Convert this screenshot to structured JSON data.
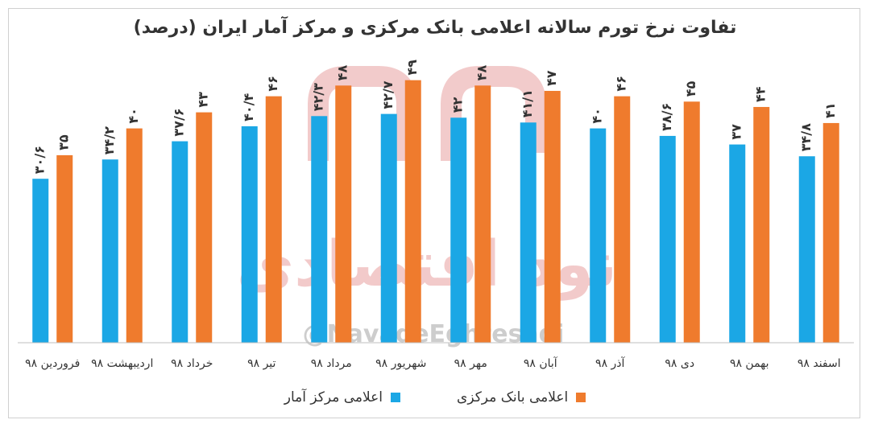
{
  "chart_data": {
    "type": "bar",
    "title": "تفاوت نرخ تورم سالانه اعلامی بانک مرکزی و مرکز آمار ایران (درصد)",
    "categories": [
      "فروردین ۹۸",
      "اردیبهشت ۹۸",
      "خرداد ۹۸",
      "تیر ۹۸",
      "مرداد ۹۸",
      "شهریور ۹۸",
      "مهر ۹۸",
      "آبان ۹۸",
      "آذر ۹۸",
      "دی ۹۸",
      "بهمن ۹۸",
      "اسفند ۹۸"
    ],
    "series": [
      {
        "name": "اعلامی مرکز آمار",
        "color": "#1ba7e5",
        "values": [
          30.6,
          34.2,
          37.6,
          40.4,
          42.3,
          42.7,
          42,
          41.1,
          40,
          38.6,
          37,
          34.8
        ],
        "labels": [
          "۳۰/۶",
          "۳۴/۲",
          "۳۷/۶",
          "۴۰/۴",
          "۴۲/۳",
          "۴۲/۷",
          "۴۲",
          "۴۱/۱",
          "۴۰",
          "۳۸/۶",
          "۳۷",
          "۳۴/۸"
        ]
      },
      {
        "name": "اعلامی بانک مرکزی",
        "color": "#ef7b2d",
        "values": [
          35,
          40,
          43,
          46,
          48,
          49,
          48,
          47,
          46,
          45,
          44,
          41
        ],
        "labels": [
          "۳۵",
          "۴۰",
          "۴۳",
          "۴۶",
          "۴۸",
          "۴۹",
          "۴۸",
          "۴۷",
          "۴۶",
          "۴۵",
          "۴۴",
          "۴۱"
        ]
      }
    ],
    "legend_position": "bottom",
    "grid": false
  },
  "watermark": {
    "brand_text": "نود اقتصادی",
    "handle": "@NavadeEghtesadi",
    "color": "#e8a0a0"
  }
}
